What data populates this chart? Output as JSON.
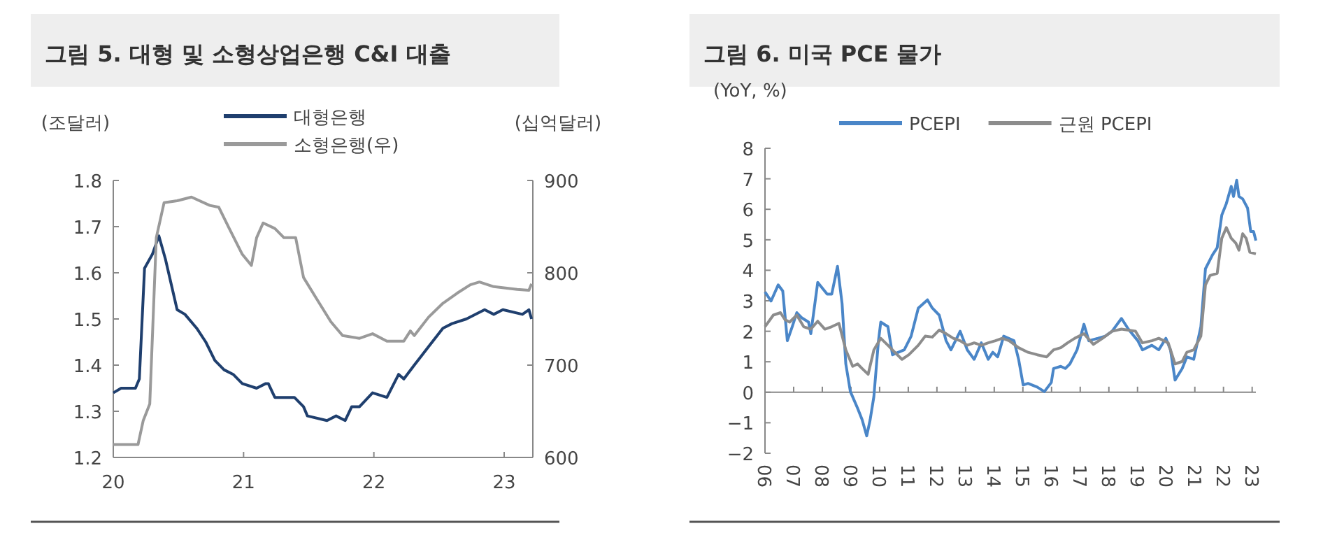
{
  "chart_data": [
    {
      "type": "line",
      "title": "그림 5. 대형 및 소형상업은행 C&I 대출",
      "ylabel": "(조달러)",
      "y2label": "(십억달러)",
      "legend": "top",
      "xlim": [
        2020,
        2023.22
      ],
      "xticks": [
        {
          "value": 2020,
          "label": "20"
        },
        {
          "value": 2021,
          "label": "21"
        },
        {
          "value": 2022,
          "label": "22"
        },
        {
          "value": 2023,
          "label": "23"
        }
      ],
      "ylim": [
        1.2,
        1.8
      ],
      "yticks": [
        1.2,
        1.3,
        1.4,
        1.5,
        1.6,
        1.7,
        1.8
      ],
      "y2lim": [
        600,
        900
      ],
      "y2ticks": [
        600,
        700,
        800,
        900
      ],
      "series": [
        {
          "name": "대형은행",
          "color": "#1f3f6e",
          "x": [
            2020.0,
            2020.06,
            2020.17,
            2020.2,
            2020.24,
            2020.3,
            2020.35,
            2020.4,
            2020.49,
            2020.55,
            2020.64,
            2020.71,
            2020.78,
            2020.85,
            2020.92,
            2020.99,
            2021.1,
            2021.17,
            2021.19,
            2021.24,
            2021.39,
            2021.46,
            2021.49,
            2021.64,
            2021.71,
            2021.78,
            2021.83,
            2021.89,
            2021.99,
            2022.1,
            2022.19,
            2022.23,
            2022.31,
            2022.42,
            2022.53,
            2022.6,
            2022.71,
            2022.85,
            2022.92,
            2022.99,
            2023.14,
            2023.19,
            2023.21
          ],
          "values": [
            1.34,
            1.35,
            1.35,
            1.37,
            1.61,
            1.64,
            1.68,
            1.63,
            1.52,
            1.51,
            1.48,
            1.45,
            1.41,
            1.39,
            1.38,
            1.36,
            1.35,
            1.36,
            1.36,
            1.33,
            1.33,
            1.31,
            1.29,
            1.28,
            1.29,
            1.28,
            1.31,
            1.31,
            1.34,
            1.33,
            1.38,
            1.37,
            1.4,
            1.44,
            1.48,
            1.49,
            1.5,
            1.52,
            1.51,
            1.52,
            1.51,
            1.52,
            1.5
          ]
        },
        {
          "name": "소형은행(우)",
          "color": "#9a9a9a",
          "axis": "y2",
          "x": [
            2020.0,
            2020.19,
            2020.23,
            2020.28,
            2020.33,
            2020.39,
            2020.49,
            2020.6,
            2020.74,
            2020.81,
            2020.89,
            2020.99,
            2021.06,
            2021.1,
            2021.15,
            2021.24,
            2021.31,
            2021.4,
            2021.46,
            2021.56,
            2021.67,
            2021.76,
            2021.89,
            2021.99,
            2022.1,
            2022.23,
            2022.28,
            2022.31,
            2022.42,
            2022.53,
            2022.64,
            2022.74,
            2022.81,
            2022.92,
            2023.1,
            2023.19,
            2023.21
          ],
          "values": [
            614,
            614,
            640,
            658,
            838,
            876,
            878,
            882,
            873,
            871,
            848,
            820,
            808,
            838,
            854,
            848,
            838,
            838,
            795,
            772,
            747,
            732,
            729,
            734,
            726,
            726,
            737,
            732,
            752,
            767,
            778,
            787,
            790,
            785,
            782,
            781,
            788
          ]
        }
      ]
    },
    {
      "type": "line",
      "title": "그림 6. 미국 PCE 물가",
      "ylabel": "(YoY, %)",
      "legend": "top",
      "xlim": [
        2006,
        2023.13
      ],
      "xticks": [
        {
          "value": 2006,
          "label": "06"
        },
        {
          "value": 2007,
          "label": "07"
        },
        {
          "value": 2008,
          "label": "08"
        },
        {
          "value": 2009,
          "label": "09"
        },
        {
          "value": 2010,
          "label": "10"
        },
        {
          "value": 2011,
          "label": "11"
        },
        {
          "value": 2012,
          "label": "12"
        },
        {
          "value": 2013,
          "label": "13"
        },
        {
          "value": 2014,
          "label": "14"
        },
        {
          "value": 2015,
          "label": "15"
        },
        {
          "value": 2016,
          "label": "16"
        },
        {
          "value": 2017,
          "label": "17"
        },
        {
          "value": 2018,
          "label": "18"
        },
        {
          "value": 2019,
          "label": "19"
        },
        {
          "value": 2020,
          "label": "20"
        },
        {
          "value": 2021,
          "label": "21"
        },
        {
          "value": 2022,
          "label": "22"
        },
        {
          "value": 2023,
          "label": "23"
        }
      ],
      "ylim": [
        -2,
        8
      ],
      "yticks": [
        {
          "value": -2,
          "label": "−2"
        },
        {
          "value": -1,
          "label": "−1"
        },
        0,
        1,
        2,
        3,
        4,
        5,
        6,
        7,
        8
      ],
      "series": [
        {
          "name": "PCEPI",
          "color": "#4a86c8",
          "x": [
            2006.0,
            2006.21,
            2006.46,
            2006.62,
            2006.78,
            2006.95,
            2007.11,
            2007.27,
            2007.52,
            2007.6,
            2007.84,
            2008.17,
            2008.33,
            2008.53,
            2008.69,
            2008.82,
            2008.98,
            2009.23,
            2009.39,
            2009.55,
            2009.67,
            2009.8,
            2009.96,
            2010.04,
            2010.29,
            2010.45,
            2010.86,
            2011.1,
            2011.35,
            2011.67,
            2011.84,
            2012.08,
            2012.32,
            2012.49,
            2012.81,
            2013.06,
            2013.3,
            2013.55,
            2013.79,
            2013.95,
            2014.12,
            2014.33,
            2014.69,
            2014.85,
            2015.01,
            2015.18,
            2015.5,
            2015.75,
            2015.99,
            2016.07,
            2016.32,
            2016.48,
            2016.64,
            2016.89,
            2017.13,
            2017.3,
            2017.62,
            2017.87,
            2018.11,
            2018.44,
            2018.68,
            2019.01,
            2019.17,
            2019.5,
            2019.74,
            2019.99,
            2020.15,
            2020.31,
            2020.56,
            2020.72,
            2020.96,
            2021.21,
            2021.37,
            2021.62,
            2021.78,
            2021.94,
            2022.1,
            2022.27,
            2022.35,
            2022.46,
            2022.54,
            2022.67,
            2022.84,
            2022.95,
            2023.05,
            2023.13
          ],
          "values": [
            3.29,
            2.99,
            3.52,
            3.32,
            1.69,
            2.15,
            2.61,
            2.45,
            2.3,
            1.92,
            3.6,
            3.22,
            3.22,
            4.13,
            2.91,
            0.93,
            0.02,
            -0.52,
            -0.9,
            -1.43,
            -0.9,
            -0.14,
            1.69,
            2.3,
            2.15,
            1.23,
            1.39,
            1.84,
            2.76,
            3.03,
            2.76,
            2.53,
            1.69,
            1.39,
            2.0,
            1.39,
            1.08,
            1.62,
            1.08,
            1.31,
            1.16,
            1.84,
            1.69,
            1.08,
            0.24,
            0.29,
            0.17,
            0.02,
            0.32,
            0.78,
            0.85,
            0.78,
            0.93,
            1.39,
            2.23,
            1.69,
            1.77,
            1.84,
            2.0,
            2.42,
            2.07,
            1.69,
            1.39,
            1.54,
            1.39,
            1.77,
            1.39,
            0.4,
            0.78,
            1.16,
            1.08,
            2.15,
            4.05,
            4.51,
            4.74,
            5.81,
            6.19,
            6.75,
            6.42,
            6.95,
            6.42,
            6.34,
            6.04,
            5.27,
            5.27,
            4.97
          ]
        },
        {
          "name": "근원 PCEPI",
          "color": "#8c8c8c",
          "x": [
            2006.0,
            2006.29,
            2006.54,
            2006.7,
            2006.86,
            2007.11,
            2007.35,
            2007.6,
            2007.84,
            2008.09,
            2008.33,
            2008.58,
            2008.82,
            2009.06,
            2009.23,
            2009.39,
            2009.6,
            2009.8,
            2010.04,
            2010.29,
            2010.53,
            2010.78,
            2011.02,
            2011.35,
            2011.59,
            2011.84,
            2012.08,
            2012.32,
            2012.57,
            2012.81,
            2013.06,
            2013.3,
            2013.55,
            2013.79,
            2014.04,
            2014.28,
            2014.52,
            2014.85,
            2015.18,
            2015.5,
            2015.83,
            2016.07,
            2016.32,
            2016.56,
            2016.81,
            2017.13,
            2017.46,
            2017.78,
            2018.11,
            2018.44,
            2018.93,
            2019.17,
            2019.5,
            2019.74,
            2020.07,
            2020.31,
            2020.56,
            2020.72,
            2020.96,
            2021.21,
            2021.37,
            2021.53,
            2021.78,
            2021.94,
            2022.1,
            2022.27,
            2022.43,
            2022.54,
            2022.67,
            2022.79,
            2022.92,
            2023.13
          ],
          "values": [
            2.15,
            2.53,
            2.61,
            2.38,
            2.3,
            2.53,
            2.15,
            2.07,
            2.33,
            2.07,
            2.15,
            2.26,
            1.39,
            0.85,
            0.93,
            0.78,
            0.59,
            1.39,
            1.77,
            1.54,
            1.31,
            1.08,
            1.23,
            1.54,
            1.84,
            1.81,
            2.04,
            1.92,
            1.77,
            1.69,
            1.54,
            1.62,
            1.54,
            1.62,
            1.69,
            1.77,
            1.69,
            1.46,
            1.31,
            1.23,
            1.16,
            1.39,
            1.46,
            1.62,
            1.77,
            1.92,
            1.57,
            1.77,
            2.0,
            2.07,
            2.0,
            1.62,
            1.69,
            1.77,
            1.62,
            0.93,
            1.01,
            1.31,
            1.39,
            1.84,
            3.52,
            3.83,
            3.9,
            5.05,
            5.4,
            5.05,
            4.89,
            4.66,
            5.2,
            5.05,
            4.59,
            4.54
          ]
        }
      ]
    }
  ]
}
